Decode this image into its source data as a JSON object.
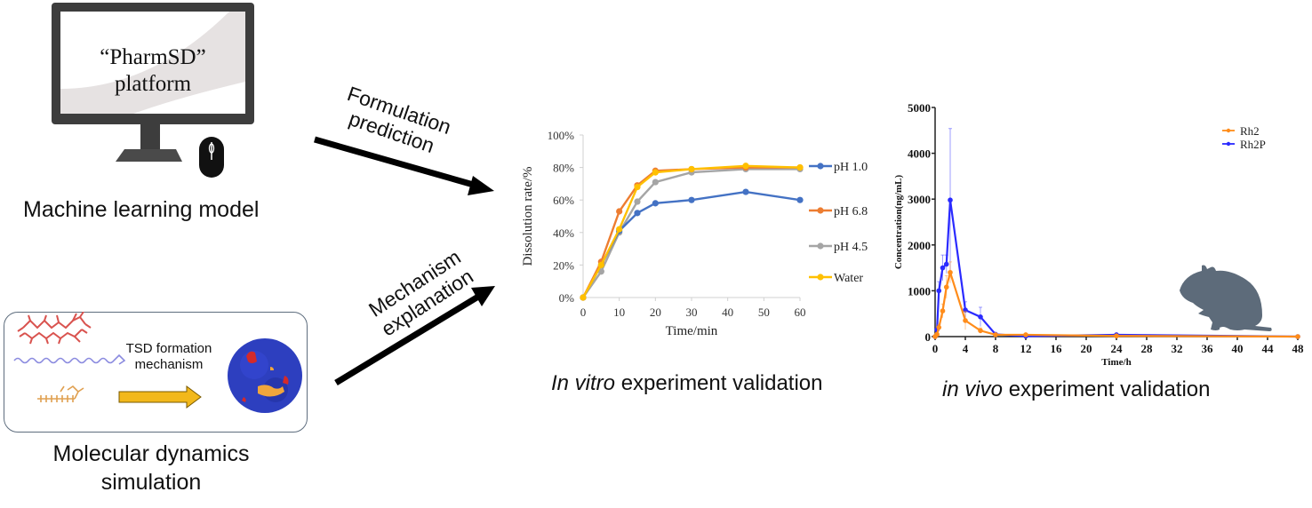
{
  "machine_learning": {
    "screen_text_line1": "“PharmSD”",
    "screen_text_line2": "platform",
    "caption": "Machine learning model",
    "icons": [
      "monitor-icon",
      "mouse-icon"
    ]
  },
  "molecular_dynamics": {
    "arrow_label_line1": "TSD formation",
    "arrow_label_line2": "mechanism",
    "caption_line1": "Molecular dynamics",
    "caption_line2": "simulation",
    "icons": [
      "molecule-red-icon",
      "polymer-chain-icon",
      "molecule-orange-icon",
      "protein-blob-icon"
    ]
  },
  "arrows": {
    "top_label_line1": "Formulation",
    "top_label_line2": "prediction",
    "bottom_label_line1": "Mechanism",
    "bottom_label_line2": "explanation"
  },
  "captions": {
    "vitro_italic": "In vitro",
    "vitro_rest": " experiment validation",
    "vivo_italic": "in vivo",
    "vivo_rest": " experiment validation"
  },
  "colors": {
    "ph10": "#4472c4",
    "ph68": "#ed7d31",
    "ph45": "#a5a5a5",
    "water": "#ffc000",
    "rh2": "#ff8c1a",
    "rh2p": "#2a2aff",
    "rat": "#5d6b7a"
  },
  "chart_data": [
    {
      "type": "line",
      "title": "",
      "xlabel": "Time/min",
      "ylabel": "Dissolution  rate/%",
      "x": [
        0,
        5,
        10,
        15,
        20,
        30,
        45,
        60
      ],
      "xticks": [
        "0",
        "10",
        "20",
        "30",
        "40",
        "50",
        "60"
      ],
      "xlim": [
        0,
        60
      ],
      "yticks": [
        "0%",
        "20%",
        "40%",
        "60%",
        "80%",
        "100%"
      ],
      "ylim": [
        0,
        100
      ],
      "grid": false,
      "legend_position": "right",
      "series": [
        {
          "name": "pH 1.0",
          "values": [
            0,
            20,
            41,
            52,
            58,
            60,
            65,
            60
          ]
        },
        {
          "name": "pH 6.8",
          "values": [
            0,
            22,
            53,
            69,
            78,
            79,
            80,
            80
          ]
        },
        {
          "name": "pH 4.5",
          "values": [
            0,
            16,
            40,
            59,
            71,
            77,
            79,
            79
          ]
        },
        {
          "name": "Water",
          "values": [
            0,
            20,
            42,
            68,
            77,
            79,
            81,
            80
          ]
        }
      ]
    },
    {
      "type": "line",
      "title": "",
      "xlabel": "Time/h",
      "ylabel": "Concentration(ng/mL)",
      "xticks": [
        "0",
        "4",
        "8",
        "12",
        "16",
        "20",
        "24",
        "28",
        "32",
        "36",
        "40",
        "44",
        "48"
      ],
      "xlim": [
        0,
        48
      ],
      "yticks": [
        "0",
        "1000",
        "2000",
        "3000",
        "4000",
        "5000"
      ],
      "ylim": [
        0,
        5000
      ],
      "grid": false,
      "legend_position": "top-right",
      "series": [
        {
          "name": "Rh2",
          "x": [
            0,
            0.25,
            0.5,
            1,
            1.5,
            2,
            4,
            6,
            8,
            12,
            24,
            48
          ],
          "values": [
            0,
            50,
            200,
            560,
            1080,
            1400,
            350,
            130,
            40,
            40,
            15,
            0
          ],
          "error": [
            0,
            30,
            60,
            150,
            250,
            230,
            200,
            60,
            20,
            10,
            5,
            0
          ]
        },
        {
          "name": "Rh2P",
          "x": [
            0,
            0.25,
            0.5,
            1,
            1.5,
            2,
            4,
            6,
            8,
            12,
            24,
            48
          ],
          "values": [
            0,
            150,
            1000,
            1500,
            1580,
            2980,
            580,
            430,
            50,
            10,
            40,
            0
          ],
          "error": [
            0,
            50,
            200,
            280,
            200,
            1560,
            180,
            210,
            20,
            5,
            10,
            0
          ]
        }
      ]
    }
  ]
}
